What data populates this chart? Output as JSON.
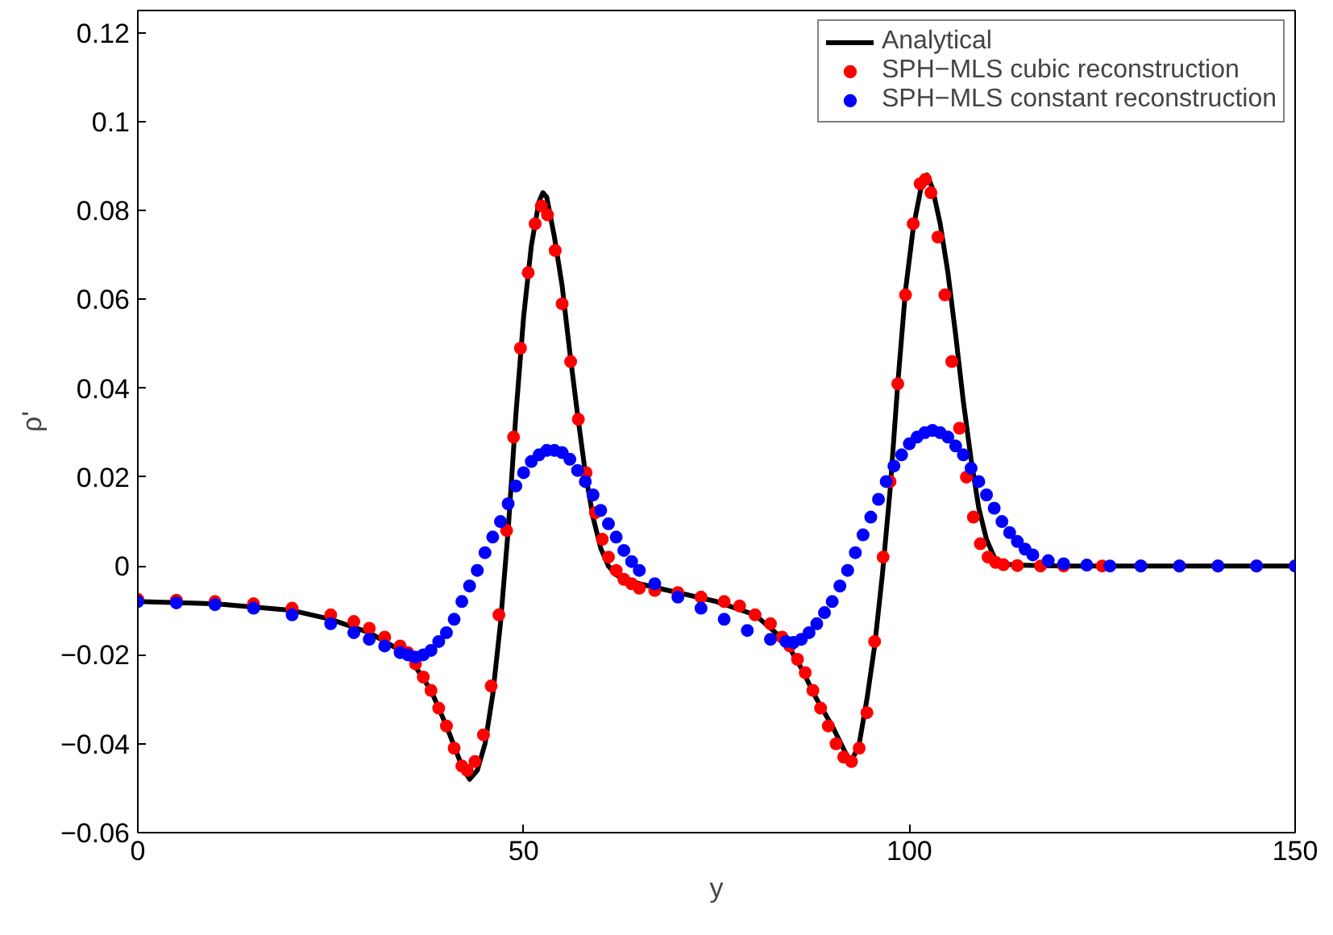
{
  "chart_data": {
    "type": "line",
    "xlabel": "y",
    "ylabel": "ρ'",
    "xlim": [
      0,
      150
    ],
    "ylim": [
      -0.06,
      0.125
    ],
    "xticks": [
      0,
      50,
      100,
      150
    ],
    "yticks": [
      {
        "value": -0.06,
        "label": "−0.06"
      },
      {
        "value": -0.04,
        "label": "−0.04"
      },
      {
        "value": -0.02,
        "label": "−0.02"
      },
      0,
      0.02,
      0.04,
      0.06,
      0.08,
      0.1,
      0.12
    ],
    "grid": false,
    "legend": "top right",
    "series": [
      {
        "name": "Analytical",
        "color": "#000000",
        "line_style": "solid",
        "x": [
          0,
          10,
          20,
          25,
          30,
          35,
          38,
          40,
          42,
          43,
          44,
          45,
          46,
          47,
          48,
          49,
          50,
          51,
          52,
          52.5,
          53,
          54,
          55,
          56,
          57,
          58,
          59,
          60,
          61,
          62,
          63,
          65,
          70,
          75,
          80,
          84,
          86,
          88,
          90,
          92,
          92.5,
          93.5,
          94.5,
          95.5,
          96.5,
          97.5,
          98.5,
          99.5,
          100.5,
          101.5,
          102.3,
          103,
          104,
          105,
          106,
          107,
          108,
          109,
          110,
          111,
          112,
          114,
          120,
          150
        ],
        "values": [
          -0.008,
          -0.0085,
          -0.01,
          -0.012,
          -0.015,
          -0.02,
          -0.028,
          -0.036,
          -0.045,
          -0.048,
          -0.046,
          -0.04,
          -0.029,
          -0.013,
          0.008,
          0.034,
          0.056,
          0.072,
          0.082,
          0.084,
          0.083,
          0.074,
          0.063,
          0.048,
          0.034,
          0.021,
          0.011,
          0.004,
          0,
          -0.002,
          -0.003,
          -0.004,
          -0.006,
          -0.008,
          -0.011,
          -0.017,
          -0.023,
          -0.03,
          -0.036,
          -0.043,
          -0.044,
          -0.04,
          -0.03,
          -0.018,
          -0.002,
          0.017,
          0.041,
          0.062,
          0.076,
          0.085,
          0.088,
          0.085,
          0.077,
          0.066,
          0.052,
          0.037,
          0.024,
          0.013,
          0.006,
          0.002,
          0.0005,
          0.0002,
          0,
          0
        ]
      },
      {
        "name": "SPH−MLS cubic reconstruction",
        "type": "scatter",
        "color": "#ff0000",
        "marker": "circle",
        "x": [
          0,
          5,
          10,
          15,
          20,
          25,
          28,
          30,
          32,
          34,
          35,
          36,
          37,
          38,
          39,
          40,
          41,
          42,
          42.7,
          43.7,
          44.8,
          45.8,
          46.8,
          47.8,
          48.7,
          49.6,
          50.6,
          51.5,
          52.3,
          53.1,
          54.1,
          55,
          56.1,
          57.1,
          58.1,
          59.3,
          60.2,
          61,
          62,
          63,
          64,
          65,
          67,
          70,
          73,
          76,
          78,
          80,
          82,
          83.5,
          84.5,
          85.5,
          86.5,
          87.5,
          88.5,
          89.5,
          90.5,
          91.5,
          92.5,
          93.5,
          94.5,
          95.5,
          96.6,
          97.5,
          98.5,
          99.5,
          100.5,
          101.4,
          102.1,
          102.8,
          103.7,
          104.6,
          105.5,
          106.5,
          107.4,
          108.3,
          109.2,
          110.2,
          111.2,
          112.2,
          114,
          117,
          120,
          125,
          130,
          135,
          140,
          145,
          150
        ],
        "values": [
          -0.0075,
          -0.0077,
          -0.008,
          -0.0085,
          -0.0095,
          -0.011,
          -0.0125,
          -0.014,
          -0.016,
          -0.018,
          -0.0195,
          -0.022,
          -0.025,
          -0.028,
          -0.032,
          -0.036,
          -0.041,
          -0.045,
          -0.046,
          -0.044,
          -0.038,
          -0.027,
          -0.011,
          0.008,
          0.029,
          0.049,
          0.066,
          0.077,
          0.081,
          0.079,
          0.071,
          0.059,
          0.046,
          0.033,
          0.021,
          0.012,
          0.006,
          0.002,
          -0.001,
          -0.003,
          -0.004,
          -0.005,
          -0.0055,
          -0.006,
          -0.007,
          -0.008,
          -0.009,
          -0.011,
          -0.013,
          -0.016,
          -0.018,
          -0.021,
          -0.024,
          -0.028,
          -0.032,
          -0.036,
          -0.04,
          -0.043,
          -0.044,
          -0.041,
          -0.033,
          -0.017,
          0.002,
          0.019,
          0.041,
          0.061,
          0.077,
          0.086,
          0.087,
          0.084,
          0.074,
          0.061,
          0.046,
          0.031,
          0.02,
          0.011,
          0.005,
          0.002,
          0.0008,
          0.0003,
          0.0001,
          0,
          0,
          0,
          0,
          0,
          0,
          0,
          0
        ]
      },
      {
        "name": "SPH−MLS constant reconstruction",
        "type": "scatter",
        "color": "#0000ff",
        "marker": "circle",
        "x": [
          0,
          5,
          10,
          15,
          20,
          25,
          28,
          30,
          32,
          34,
          35,
          36,
          37,
          38,
          39,
          40,
          41,
          42,
          43,
          44,
          45,
          46,
          47,
          48,
          49,
          50,
          51,
          52,
          53,
          54,
          55,
          56,
          57,
          58,
          59,
          60,
          61,
          62,
          63,
          64,
          65,
          67,
          70,
          73,
          76,
          79,
          82,
          84,
          85,
          86,
          87,
          88,
          89,
          90,
          91,
          92,
          93,
          94,
          95,
          96,
          97,
          98,
          99,
          100,
          101,
          102,
          103,
          104,
          105,
          106,
          107,
          108,
          109,
          110,
          111,
          112,
          113,
          114,
          115,
          116,
          118,
          120,
          123,
          126,
          130,
          135,
          140,
          145,
          150
        ],
        "values": [
          -0.008,
          -0.0083,
          -0.0087,
          -0.0095,
          -0.011,
          -0.013,
          -0.015,
          -0.0165,
          -0.018,
          -0.0195,
          -0.02,
          -0.0205,
          -0.02,
          -0.019,
          -0.017,
          -0.015,
          -0.012,
          -0.008,
          -0.0045,
          -0.001,
          0.003,
          0.0065,
          0.01,
          0.014,
          0.018,
          0.021,
          0.0235,
          0.025,
          0.026,
          0.026,
          0.0255,
          0.024,
          0.0215,
          0.019,
          0.016,
          0.0125,
          0.0095,
          0.0065,
          0.0035,
          0.001,
          -0.001,
          -0.004,
          -0.007,
          -0.0095,
          -0.012,
          -0.0145,
          -0.0165,
          -0.017,
          -0.0172,
          -0.0165,
          -0.015,
          -0.013,
          -0.0105,
          -0.008,
          -0.0045,
          -0.001,
          0.003,
          0.007,
          0.011,
          0.015,
          0.019,
          0.0225,
          0.025,
          0.0275,
          0.029,
          0.03,
          0.0305,
          0.03,
          0.029,
          0.027,
          0.025,
          0.022,
          0.019,
          0.016,
          0.013,
          0.01,
          0.0075,
          0.0055,
          0.0038,
          0.0025,
          0.0012,
          0.0005,
          0.0002,
          0,
          0,
          0,
          0,
          0,
          0
        ]
      }
    ]
  }
}
